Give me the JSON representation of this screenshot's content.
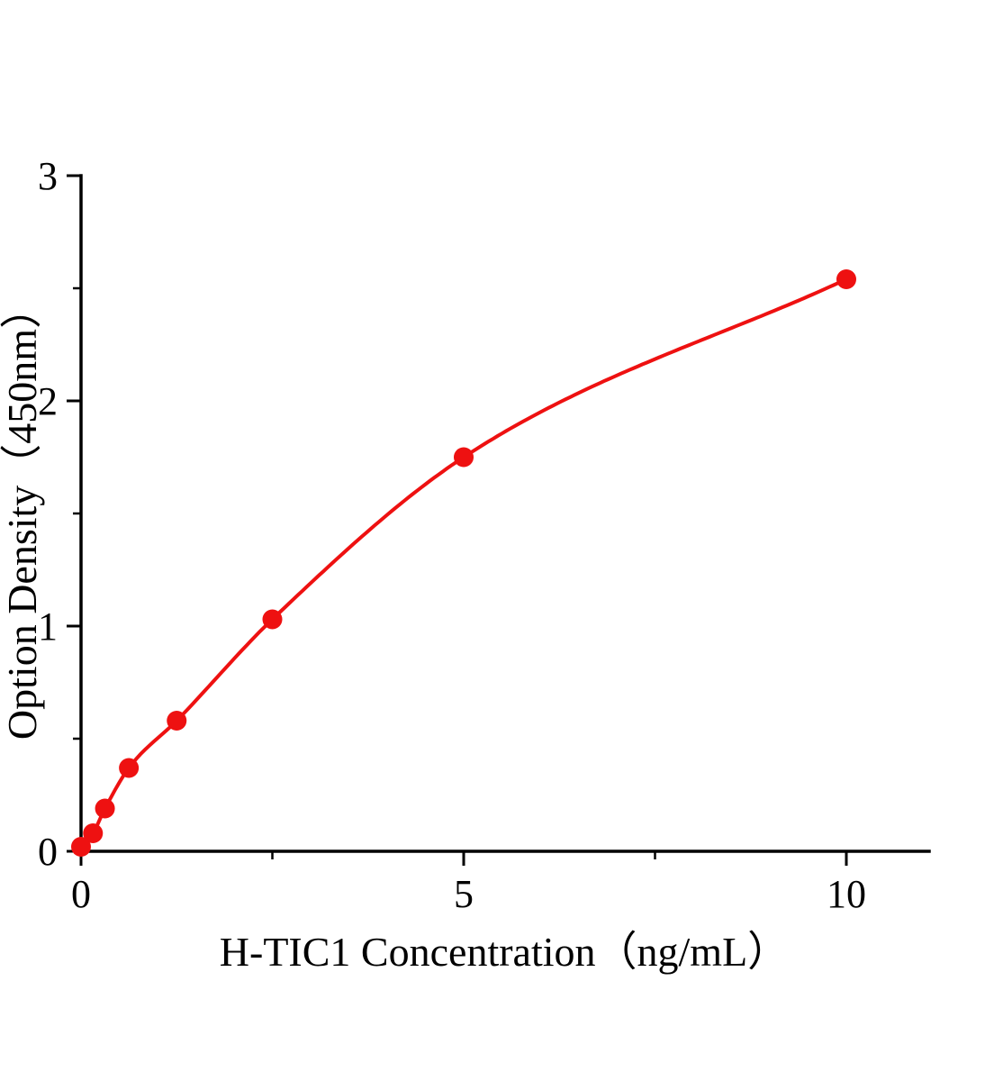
{
  "figure": {
    "background": "#ffffff",
    "axis_color": "#000000"
  },
  "chart_data": {
    "type": "scatter",
    "title": "",
    "xlabel": "H-TIC1 Concentration（ng/mL）",
    "ylabel": "Option Density（450nm）",
    "xlim": [
      0,
      11
    ],
    "ylim": [
      0,
      3
    ],
    "x_major_ticks": [
      0,
      5,
      10
    ],
    "x_major_tick_labels": [
      "0",
      "5",
      "10"
    ],
    "x_minor_ticks": [
      2.5,
      7.5
    ],
    "y_major_ticks": [
      0,
      1,
      2,
      3
    ],
    "y_major_tick_labels": [
      "0",
      "1",
      "2",
      "3"
    ],
    "y_minor_ticks": [
      0.5,
      1.5,
      2.5
    ],
    "grid": false,
    "legend": false,
    "series": [
      {
        "marker": "circle",
        "color": "#ee1111",
        "x": [
          0,
          0.156,
          0.3125,
          0.625,
          1.25,
          2.5,
          5,
          10
        ],
        "y": [
          0.02,
          0.08,
          0.19,
          0.37,
          0.58,
          1.03,
          1.75,
          2.54
        ]
      }
    ]
  }
}
